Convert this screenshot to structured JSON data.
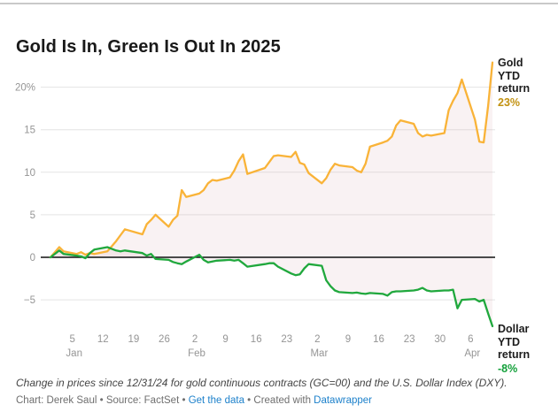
{
  "page": {
    "title": "Gold Is In, Green Is Out In 2025"
  },
  "chart_data": {
    "type": "line",
    "title": "Gold Is In, Green Is Out In 2025",
    "unit": "%",
    "grid": true,
    "legend_position": "right-edge-labels",
    "xlim": [
      "2024-12-31",
      "2025-04-11"
    ],
    "ylim": [
      -8.5,
      23.5
    ],
    "y_ticks": [
      {
        "v": 20,
        "label": "20%"
      },
      {
        "v": 15,
        "label": "15"
      },
      {
        "v": 10,
        "label": "10"
      },
      {
        "v": 5,
        "label": "5"
      },
      {
        "v": 0,
        "label": "0"
      },
      {
        "v": -5,
        "label": "−5"
      }
    ],
    "x_ticks": [
      {
        "date": "2025-01-05",
        "label": "5",
        "month": "Jan"
      },
      {
        "date": "2025-01-12",
        "label": "12"
      },
      {
        "date": "2025-01-19",
        "label": "19"
      },
      {
        "date": "2025-01-26",
        "label": "26"
      },
      {
        "date": "2025-02-02",
        "label": "2",
        "month": "Feb"
      },
      {
        "date": "2025-02-09",
        "label": "9"
      },
      {
        "date": "2025-02-16",
        "label": "16"
      },
      {
        "date": "2025-02-23",
        "label": "23"
      },
      {
        "date": "2025-03-02",
        "label": "2",
        "month": "Mar"
      },
      {
        "date": "2025-03-09",
        "label": "9"
      },
      {
        "date": "2025-03-16",
        "label": "16"
      },
      {
        "date": "2025-03-23",
        "label": "23"
      },
      {
        "date": "2025-03-30",
        "label": "30"
      },
      {
        "date": "2025-04-06",
        "label": "6",
        "month": "Apr"
      }
    ],
    "area_fill": "rgba(213,160,168,0.14)",
    "zero_line_color": "#111111",
    "gridline_color": "#e4e4e4",
    "tick_label_color": "#959595",
    "dates": [
      "2024-12-31",
      "2025-01-02",
      "2025-01-03",
      "2025-01-06",
      "2025-01-07",
      "2025-01-08",
      "2025-01-09",
      "2025-01-10",
      "2025-01-13",
      "2025-01-14",
      "2025-01-15",
      "2025-01-16",
      "2025-01-17",
      "2025-01-21",
      "2025-01-22",
      "2025-01-23",
      "2025-01-24",
      "2025-01-27",
      "2025-01-28",
      "2025-01-29",
      "2025-01-30",
      "2025-01-31",
      "2025-02-03",
      "2025-02-04",
      "2025-02-05",
      "2025-02-06",
      "2025-02-07",
      "2025-02-10",
      "2025-02-11",
      "2025-02-12",
      "2025-02-13",
      "2025-02-14",
      "2025-02-18",
      "2025-02-19",
      "2025-02-20",
      "2025-02-21",
      "2025-02-24",
      "2025-02-25",
      "2025-02-26",
      "2025-02-27",
      "2025-02-28",
      "2025-03-03",
      "2025-03-04",
      "2025-03-05",
      "2025-03-06",
      "2025-03-07",
      "2025-03-10",
      "2025-03-11",
      "2025-03-12",
      "2025-03-13",
      "2025-03-14",
      "2025-03-17",
      "2025-03-18",
      "2025-03-19",
      "2025-03-20",
      "2025-03-21",
      "2025-03-24",
      "2025-03-25",
      "2025-03-26",
      "2025-03-27",
      "2025-03-28",
      "2025-03-31",
      "2025-04-01",
      "2025-04-02",
      "2025-04-03",
      "2025-04-04",
      "2025-04-07",
      "2025-04-08",
      "2025-04-09",
      "2025-04-10",
      "2025-04-11"
    ],
    "series": [
      {
        "name": "Gold YTD return",
        "end_label": "23%",
        "color": "#F9B338",
        "label_color": "#C29110",
        "values": [
          0.0,
          1.2,
          0.7,
          0.4,
          0.6,
          0.3,
          0.5,
          0.4,
          0.7,
          1.3,
          1.9,
          2.6,
          3.3,
          2.7,
          3.9,
          4.4,
          5.0,
          3.6,
          4.4,
          4.9,
          7.9,
          7.1,
          7.5,
          7.9,
          8.7,
          9.1,
          9.0,
          9.4,
          10.2,
          11.3,
          12.1,
          9.8,
          10.5,
          11.2,
          11.9,
          12.0,
          11.8,
          12.4,
          11.1,
          10.9,
          9.9,
          8.7,
          9.3,
          10.3,
          11.0,
          10.8,
          10.6,
          10.2,
          10.0,
          11.0,
          13.0,
          13.5,
          13.7,
          14.2,
          15.5,
          16.1,
          15.7,
          14.6,
          14.2,
          14.4,
          14.3,
          14.6,
          17.3,
          18.4,
          19.3,
          20.9,
          16.2,
          13.6,
          13.5,
          17.8,
          22.9
        ]
      },
      {
        "name": "Dollar YTD return",
        "end_label": "-8%",
        "color": "#20A83D",
        "label_color": "#13A03A",
        "values": [
          0.0,
          0.8,
          0.4,
          0.2,
          0.1,
          -0.1,
          0.5,
          0.9,
          1.2,
          1.0,
          0.8,
          0.7,
          0.8,
          0.5,
          0.2,
          0.4,
          -0.2,
          -0.3,
          -0.55,
          -0.7,
          -0.8,
          -0.5,
          0.3,
          -0.3,
          -0.6,
          -0.5,
          -0.4,
          -0.3,
          -0.4,
          -0.3,
          -0.7,
          -1.1,
          -0.8,
          -0.7,
          -0.7,
          -1.1,
          -1.9,
          -2.1,
          -2.0,
          -1.3,
          -0.8,
          -1.0,
          -2.7,
          -3.4,
          -3.9,
          -4.1,
          -4.2,
          -4.15,
          -4.25,
          -4.3,
          -4.2,
          -4.3,
          -4.5,
          -4.1,
          -4.0,
          -4.0,
          -3.9,
          -3.8,
          -3.6,
          -3.9,
          -4.0,
          -3.9,
          -3.9,
          -3.8,
          -6.0,
          -5.0,
          -4.9,
          -5.2,
          -5.0,
          -6.6,
          -8.1
        ]
      }
    ]
  },
  "footer": {
    "note": "Change in prices since 12/31/24 for gold continuous contracts (GC=00) and the U.S. Dollar Index (DXY).",
    "byline_prefix": "Chart: Derek Saul • Source: FactSet • ",
    "get_data_label": "Get the data",
    "byline_mid": " • Created with ",
    "datawrapper_label": "Datawrapper",
    "link_color": "#1d81cb"
  }
}
